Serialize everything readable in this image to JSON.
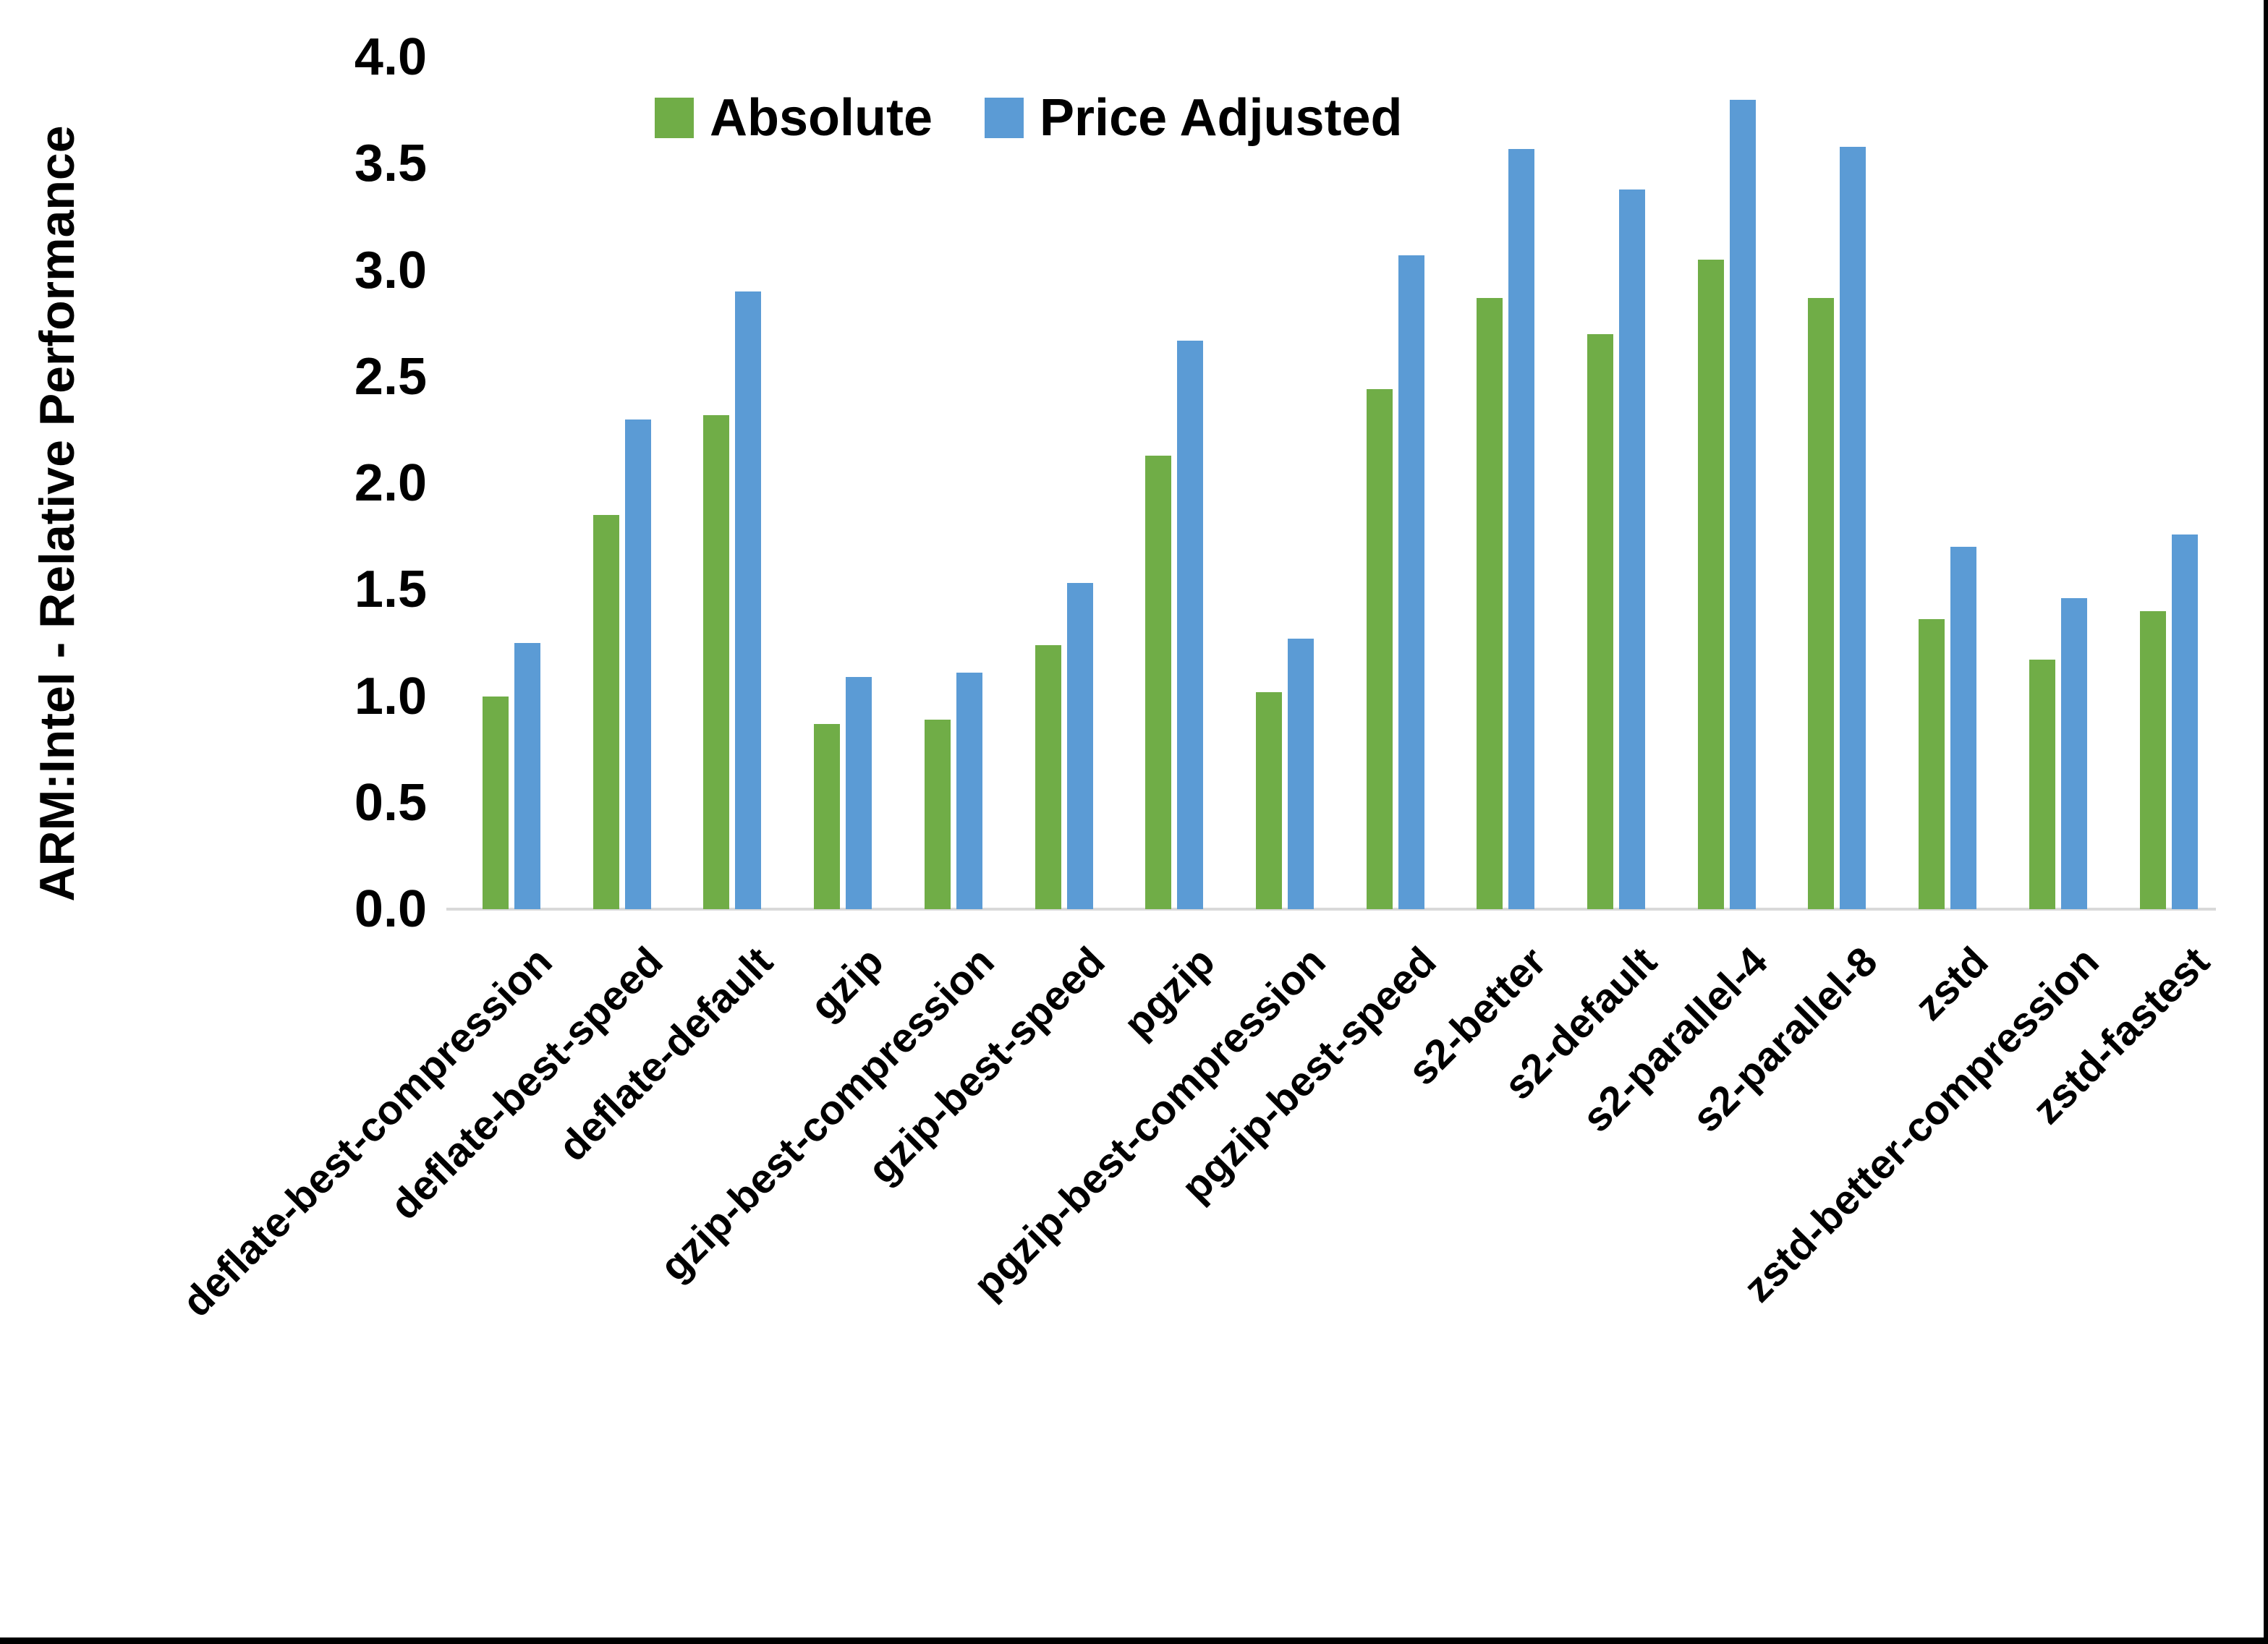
{
  "chart_data": {
    "type": "bar",
    "title": "",
    "xlabel": "",
    "ylabel": "ARM:Intel - Relative Performance",
    "ylim": [
      0.0,
      4.0
    ],
    "ytick_labels": [
      "0.0",
      "0.5",
      "1.0",
      "1.5",
      "2.0",
      "2.5",
      "3.0",
      "3.5",
      "4.0"
    ],
    "grid": false,
    "legend_position": "top-center",
    "categories": [
      "deflate-best-compression",
      "deflate-best-speed",
      "deflate-default",
      "gzip",
      "gzip-best-compression",
      "gzip-best-speed",
      "pgzip",
      "pgzip-best-compression",
      "pgzip-best-speed",
      "s2-better",
      "s2-default",
      "s2-parallel-4",
      "s2-parallel-8",
      "zstd",
      "zstd-better-compression",
      "zstd-fastest"
    ],
    "series": [
      {
        "name": "Absolute",
        "color": "#70AD47",
        "values": [
          1.0,
          1.85,
          2.32,
          0.87,
          0.89,
          1.24,
          2.13,
          1.02,
          2.44,
          2.87,
          2.7,
          3.05,
          2.87,
          1.36,
          1.17,
          1.4
        ]
      },
      {
        "name": "Price Adjusted",
        "color": "#5B9BD5",
        "values": [
          1.25,
          2.3,
          2.9,
          1.09,
          1.11,
          1.53,
          2.67,
          1.27,
          3.07,
          3.57,
          3.38,
          3.8,
          3.58,
          1.7,
          1.46,
          1.76
        ]
      }
    ],
    "colors": {
      "axis_line": "#D9D9D9",
      "text": "#000000",
      "background": "#FFFFFF",
      "frame_border": "#000000"
    }
  }
}
